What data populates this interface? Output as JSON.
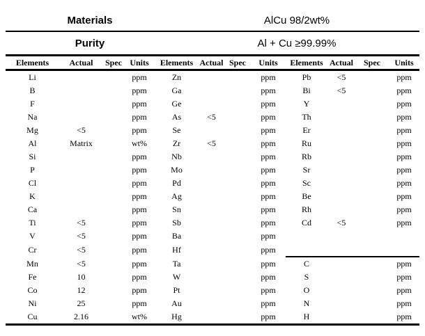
{
  "colors": {
    "text": "#000000",
    "background": "#ffffff",
    "rule": "#000000"
  },
  "document": {
    "info_rows": [
      {
        "label": "Materials",
        "value": "AlCu 98/2wt%"
      },
      {
        "label": "Purity",
        "value": "Al + Cu ≥99.99%"
      }
    ],
    "table": {
      "column_headers": [
        "Elements",
        "Actual",
        "Spec",
        "Units",
        "Elements",
        "Actual",
        "Spec",
        "Units",
        "Elements",
        "Actual",
        "Spec",
        "Units"
      ],
      "col3_separator": {
        "above_row_index": 14,
        "from_col_index": 8
      },
      "rows": [
        [
          "Li",
          "",
          "",
          "ppm",
          "Zn",
          "",
          "",
          "ppm",
          "Pb",
          "<5",
          "",
          "ppm"
        ],
        [
          "B",
          "",
          "",
          "ppm",
          "Ga",
          "",
          "",
          "ppm",
          "Bi",
          "<5",
          "",
          "ppm"
        ],
        [
          "F",
          "",
          "",
          "ppm",
          "Ge",
          "",
          "",
          "ppm",
          "Y",
          "",
          "",
          "ppm"
        ],
        [
          "Na",
          "",
          "",
          "ppm",
          "As",
          "<5",
          "",
          "ppm",
          "Th",
          "",
          "",
          "ppm"
        ],
        [
          "Mg",
          "<5",
          "",
          "ppm",
          "Se",
          "",
          "",
          "ppm",
          "Er",
          "",
          "",
          "ppm"
        ],
        [
          "Al",
          "Matrix",
          "",
          "wt%",
          "Zr",
          "<5",
          "",
          "ppm",
          "Ru",
          "",
          "",
          "ppm"
        ],
        [
          "Si",
          "",
          "",
          "ppm",
          "Nb",
          "",
          "",
          "ppm",
          "Rb",
          "",
          "",
          "ppm"
        ],
        [
          "P",
          "",
          "",
          "ppm",
          "Mo",
          "",
          "",
          "ppm",
          "Sr",
          "",
          "",
          "ppm"
        ],
        [
          "Cl",
          "",
          "",
          "ppm",
          "Pd",
          "",
          "",
          "ppm",
          "Sc",
          "",
          "",
          "ppm"
        ],
        [
          "K",
          "",
          "",
          "ppm",
          "Ag",
          "",
          "",
          "ppm",
          "Be",
          "",
          "",
          "ppm"
        ],
        [
          "Ca",
          "",
          "",
          "ppm",
          "Sn",
          "",
          "",
          "ppm",
          "Rh",
          "",
          "",
          "ppm"
        ],
        [
          "Ti",
          "<5",
          "",
          "ppm",
          "Sb",
          "",
          "",
          "ppm",
          "Cd",
          "<5",
          "",
          "ppm"
        ],
        [
          "V",
          "<5",
          "",
          "ppm",
          "Ba",
          "",
          "",
          "ppm",
          "",
          "",
          "",
          ""
        ],
        [
          "Cr",
          "<5",
          "",
          "ppm",
          "Hf",
          "",
          "",
          "ppm",
          "",
          "",
          "",
          ""
        ],
        [
          "Mn",
          "<5",
          "",
          "ppm",
          "Ta",
          "",
          "",
          "ppm",
          "C",
          "",
          "",
          "ppm"
        ],
        [
          "Fe",
          "10",
          "",
          "ppm",
          "W",
          "",
          "",
          "ppm",
          "S",
          "",
          "",
          "ppm"
        ],
        [
          "Co",
          "12",
          "",
          "ppm",
          "Pt",
          "",
          "",
          "ppm",
          "O",
          "",
          "",
          "ppm"
        ],
        [
          "Ni",
          "25",
          "",
          "ppm",
          "Au",
          "",
          "",
          "ppm",
          "N",
          "",
          "",
          "ppm"
        ],
        [
          "Cu",
          "2.16",
          "",
          "wt%",
          "Hg",
          "",
          "",
          "ppm",
          "H",
          "",
          "",
          "ppm"
        ]
      ]
    }
  }
}
